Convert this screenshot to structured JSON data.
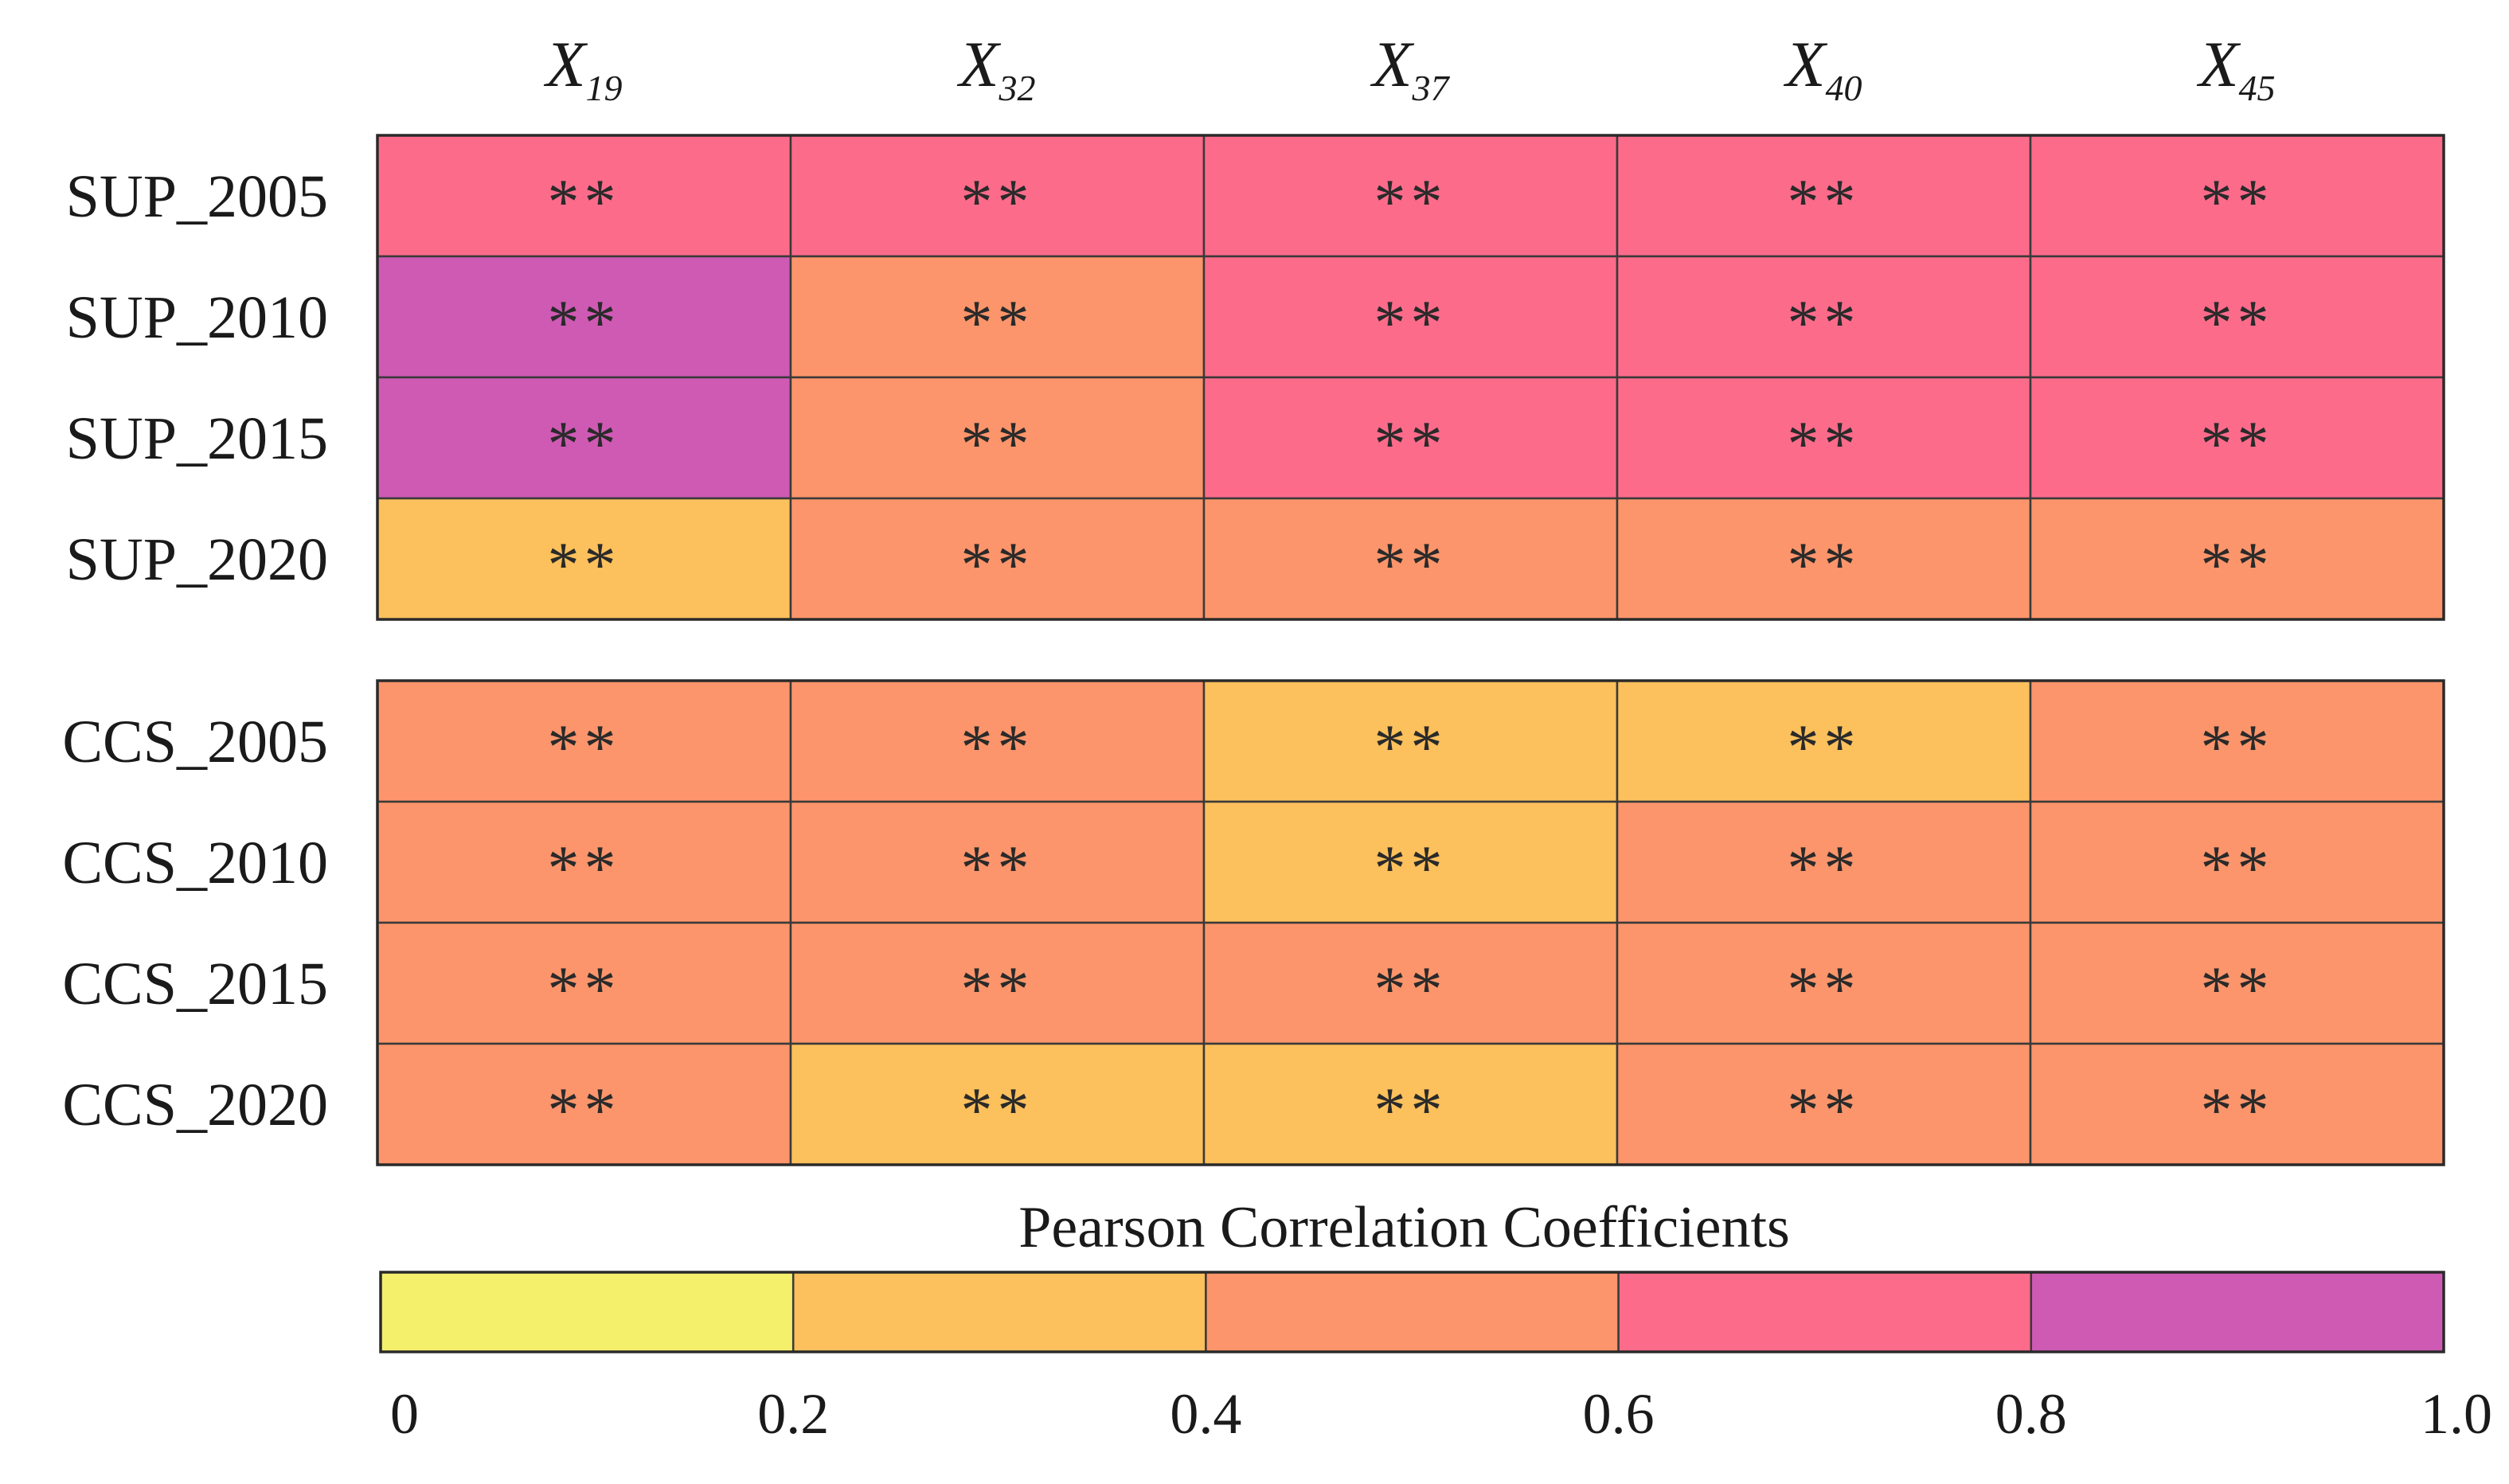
{
  "chart_data": {
    "type": "heatmap",
    "title": "",
    "columns": [
      {
        "base": "X",
        "sub": "19"
      },
      {
        "base": "X",
        "sub": "32"
      },
      {
        "base": "X",
        "sub": "37"
      },
      {
        "base": "X",
        "sub": "40"
      },
      {
        "base": "X",
        "sub": "45"
      }
    ],
    "groups": [
      {
        "name": "SUP",
        "rows": [
          "SUP_2005",
          "SUP_2010",
          "SUP_2015",
          "SUP_2020"
        ],
        "bins": [
          [
            4,
            4,
            4,
            4,
            4
          ],
          [
            5,
            3,
            4,
            4,
            4
          ],
          [
            5,
            3,
            4,
            4,
            4
          ],
          [
            2,
            3,
            3,
            3,
            3
          ]
        ]
      },
      {
        "name": "CCS",
        "rows": [
          "CCS_2005",
          "CCS_2010",
          "CCS_2015",
          "CCS_2020"
        ],
        "bins": [
          [
            3,
            3,
            2,
            2,
            3
          ],
          [
            3,
            3,
            2,
            3,
            3
          ],
          [
            3,
            3,
            3,
            3,
            3
          ],
          [
            3,
            2,
            2,
            3,
            3
          ]
        ]
      }
    ],
    "significance_mark": "**",
    "colorbar": {
      "title": "Pearson Correlation Coefficients",
      "ticks": [
        "0",
        "0.2",
        "0.4",
        "0.6",
        "0.8",
        "1.0"
      ],
      "range": [
        0,
        1.0
      ],
      "bins": [
        {
          "range": [
            0,
            0.2
          ],
          "color": "#f5f06c"
        },
        {
          "range": [
            0.2,
            0.4
          ],
          "color": "#fcc05c"
        },
        {
          "range": [
            0.4,
            0.6
          ],
          "color": "#fc956b"
        },
        {
          "range": [
            0.6,
            0.8
          ],
          "color": "#fd6b8b"
        },
        {
          "range": [
            0.8,
            1.0
          ],
          "color": "#cf5ab4"
        }
      ]
    }
  }
}
